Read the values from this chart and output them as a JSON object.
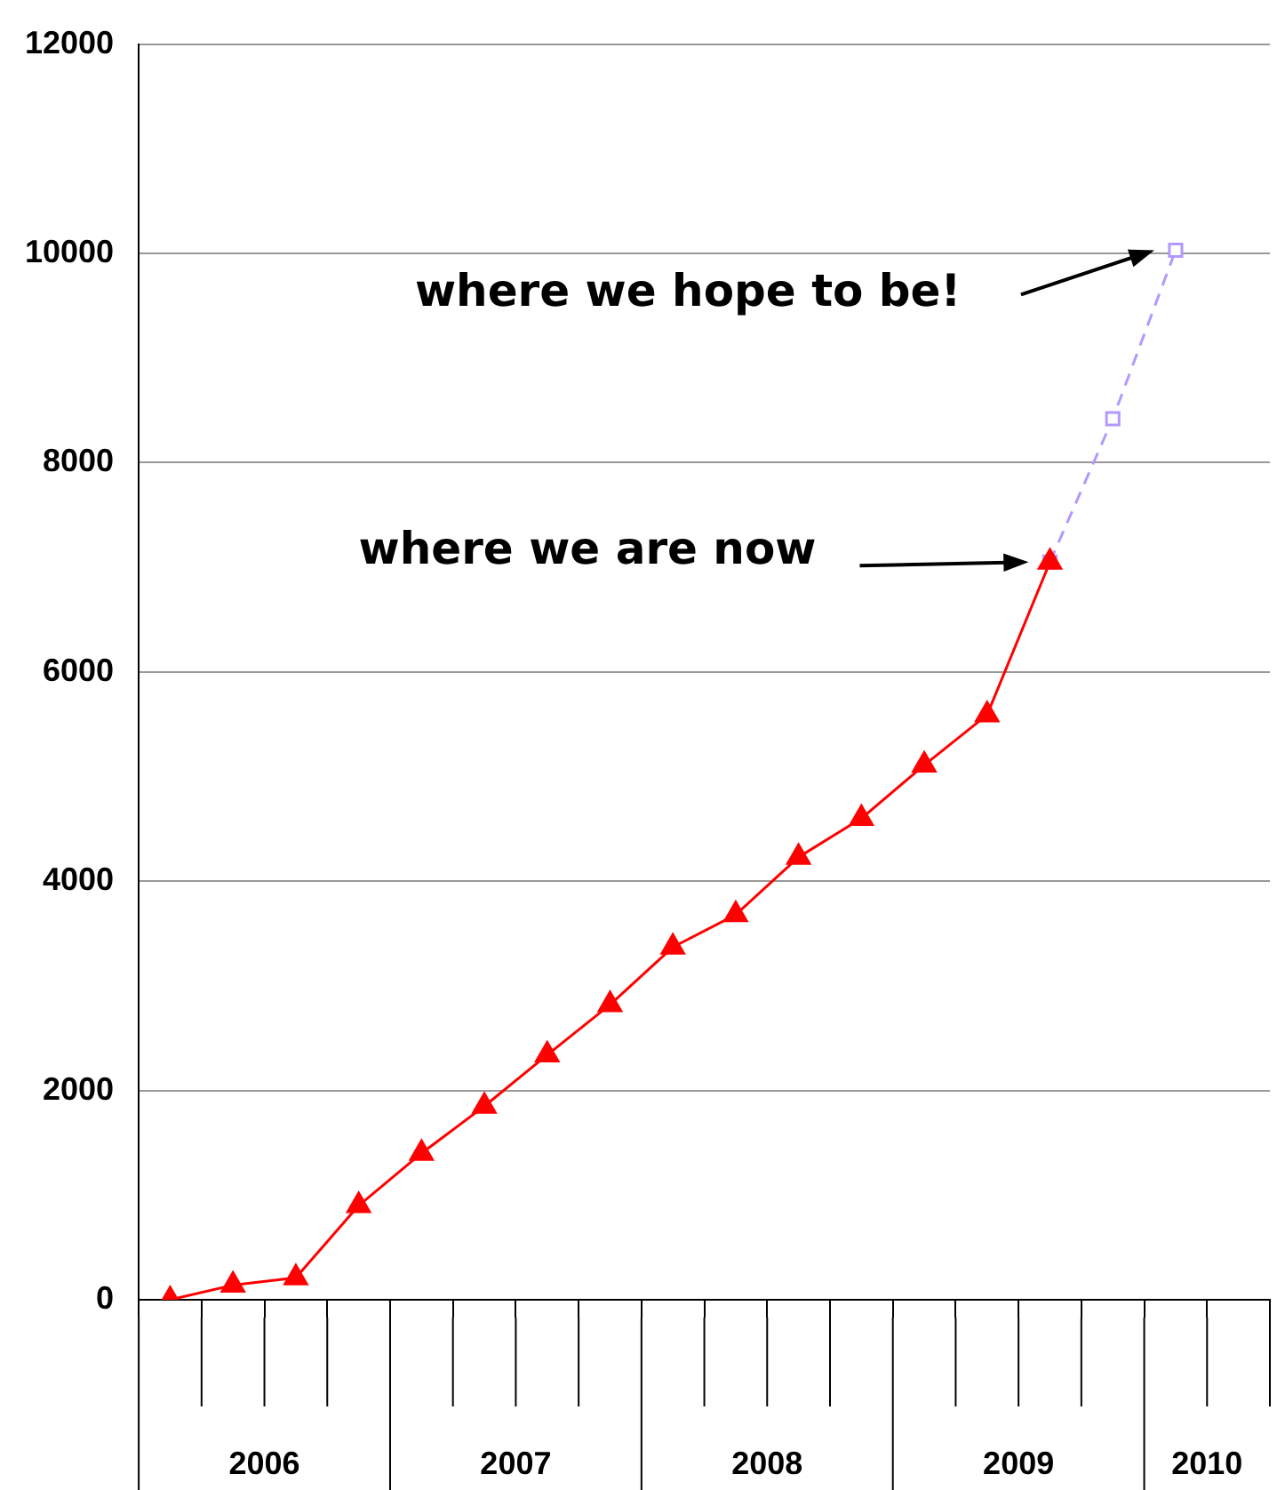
{
  "chart_data": {
    "type": "line",
    "x": [
      2006.125,
      2006.375,
      2006.625,
      2006.875,
      2007.125,
      2007.375,
      2007.625,
      2007.875,
      2008.125,
      2008.375,
      2008.625,
      2008.875,
      2009.125,
      2009.375,
      2009.625,
      2009.875,
      2010.125
    ],
    "series": [
      {
        "color": "#ff0000",
        "marker": "triangle",
        "line_style": "solid",
        "values": [
          0,
          140,
          210,
          900,
          1400,
          1850,
          2340,
          2820,
          3370,
          3680,
          4230,
          4600,
          5110,
          5590,
          7050,
          null,
          null
        ]
      },
      {
        "color": "#b399ff",
        "marker": "square",
        "line_style": "dashed",
        "values": [
          null,
          null,
          null,
          null,
          null,
          null,
          null,
          null,
          null,
          null,
          null,
          null,
          null,
          null,
          7050,
          8420,
          10030
        ]
      }
    ],
    "xlim": [
      2006,
      2010.5
    ],
    "xticks": [
      {
        "value": 2006,
        "label": null
      },
      {
        "value": 2006.25,
        "label": null
      },
      {
        "value": 2006.5,
        "label": "2006"
      },
      {
        "value": 2006.75,
        "label": null
      },
      {
        "value": 2007,
        "label": null
      },
      {
        "value": 2007.25,
        "label": null
      },
      {
        "value": 2007.5,
        "label": "2007"
      },
      {
        "value": 2007.75,
        "label": null
      },
      {
        "value": 2008,
        "label": null
      },
      {
        "value": 2008.25,
        "label": null
      },
      {
        "value": 2008.5,
        "label": "2008"
      },
      {
        "value": 2008.75,
        "label": null
      },
      {
        "value": 2009,
        "label": null
      },
      {
        "value": 2009.25,
        "label": null
      },
      {
        "value": 2009.5,
        "label": "2009"
      },
      {
        "value": 2009.75,
        "label": null
      },
      {
        "value": 2010,
        "label": null
      },
      {
        "value": 2010.25,
        "label": "2010"
      },
      {
        "value": 2010.5,
        "label": null
      }
    ],
    "ylim": [
      0,
      12000
    ],
    "yticks": [
      0,
      2000,
      4000,
      6000,
      8000,
      10000,
      12000
    ],
    "grid": "y",
    "legend": false,
    "annotations": [
      "where we hope to be!",
      "where we are now"
    ]
  }
}
